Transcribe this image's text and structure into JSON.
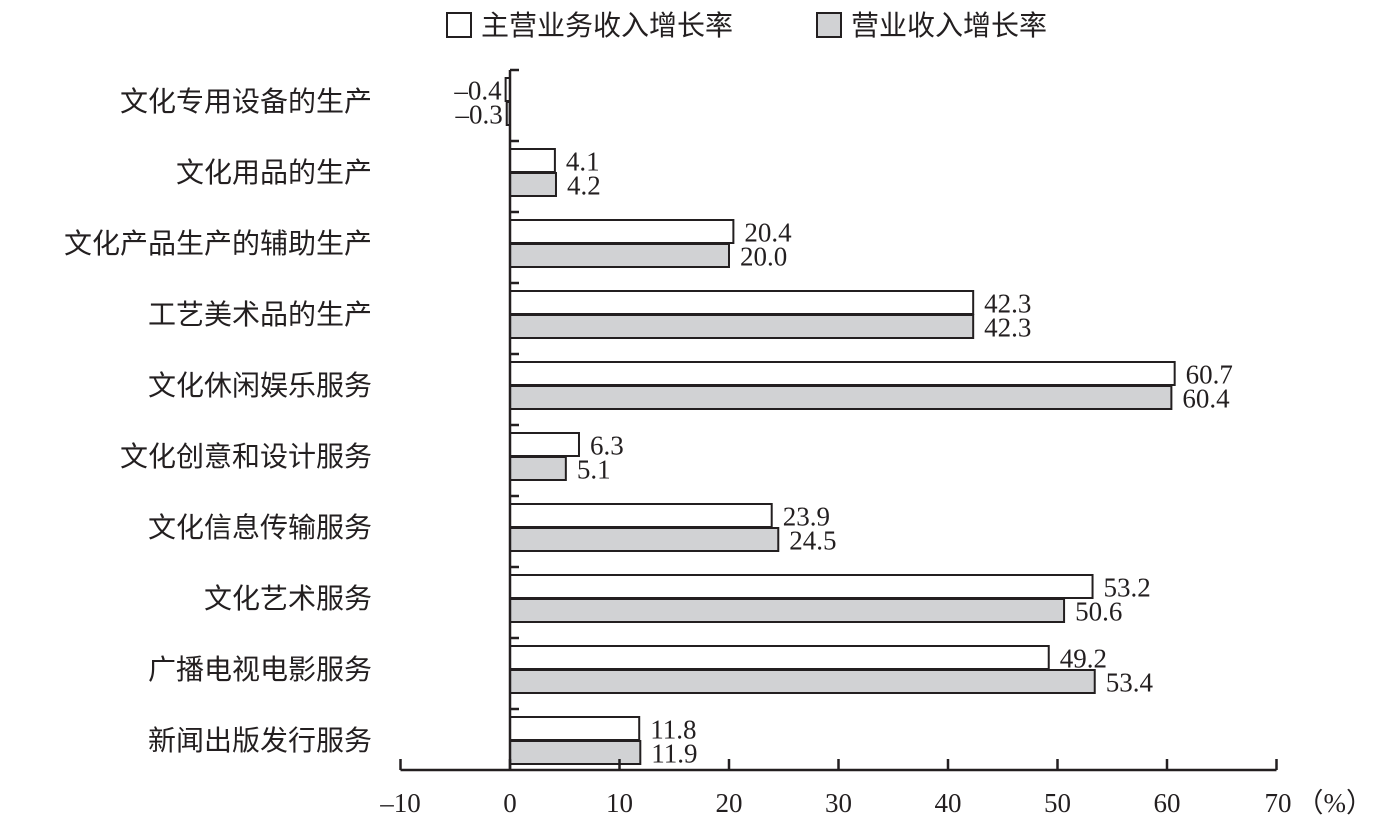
{
  "chart_data": {
    "type": "bar",
    "orientation": "horizontal",
    "title": "",
    "xlabel": "",
    "x_unit": "（%）",
    "xlim": [
      -10,
      70
    ],
    "x_ticks": [
      -10,
      0,
      10,
      20,
      30,
      40,
      50,
      60,
      70
    ],
    "x_tick_labels": [
      "–10",
      "0",
      "10",
      "20",
      "30",
      "40",
      "50",
      "60",
      "70"
    ],
    "legend_position": "top",
    "categories": [
      "文化专用设备的生产",
      "文化用品的生产",
      "文化产品生产的辅助生产",
      "工艺美术品的生产",
      "文化休闲娱乐服务",
      "文化创意和设计服务",
      "文化信息传输服务",
      "文化艺术服务",
      "广播电视电影服务",
      "新闻出版发行服务"
    ],
    "series": [
      {
        "name": "主营业务收入增长率",
        "color": "#ffffff",
        "values": [
          -0.4,
          4.1,
          20.4,
          42.3,
          60.7,
          6.3,
          23.9,
          53.2,
          49.2,
          11.8
        ],
        "labels": [
          "–0.4",
          "4.1",
          "20.4",
          "42.3",
          "60.7",
          "6.3",
          "23.9",
          "53.2",
          "49.2",
          "11.8"
        ]
      },
      {
        "name": "营业收入增长率",
        "color": "#d1d2d4",
        "values": [
          -0.3,
          4.2,
          20.0,
          42.3,
          60.4,
          5.1,
          24.5,
          50.6,
          53.4,
          11.9
        ],
        "labels": [
          "–0.3",
          "4.2",
          "20.0",
          "42.3",
          "60.4",
          "5.1",
          "24.5",
          "50.6",
          "53.4",
          "11.9"
        ]
      }
    ]
  }
}
